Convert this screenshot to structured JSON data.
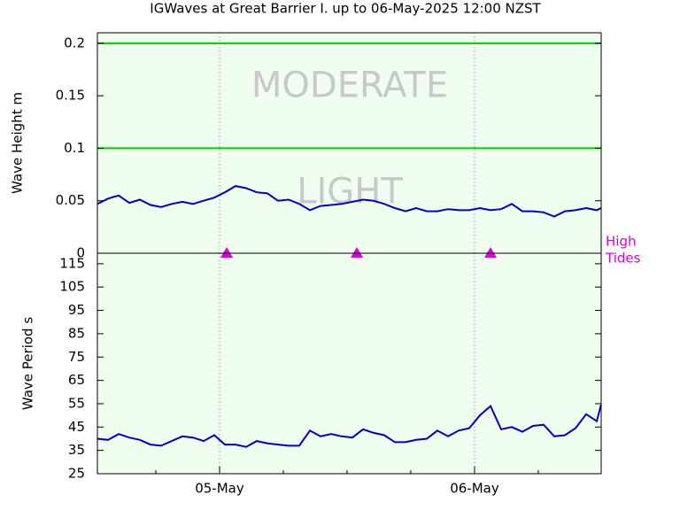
{
  "chart_data": [
    {
      "type": "line",
      "title": "IGWaves at Great Barrier I. up to 06-May-2025 12:00 NZST",
      "ylabel": "Wave Height m",
      "x": [
        -11.5,
        -10.5,
        -9.5,
        -8.5,
        -7.5,
        -6.5,
        -5.5,
        -4.5,
        -3.5,
        -2.5,
        -1.5,
        -0.5,
        0.5,
        1.5,
        2.5,
        3.5,
        4.5,
        5.5,
        6.5,
        7.5,
        8.5,
        9.5,
        10.5,
        11.5,
        12.5,
        13.5,
        14.5,
        15.5,
        16.5,
        17.5,
        18.5,
        19.5,
        20.5,
        21.5,
        22.5,
        23.5,
        24.5,
        25.5,
        26.5,
        27.5,
        28.5,
        29.5,
        30.5,
        31.5,
        32.5,
        33.5,
        34.5,
        35.5,
        35.9
      ],
      "xlim": [
        -11.5,
        35.92
      ],
      "series": [
        {
          "name": "Wave Height",
          "color": "#0000cc",
          "values": [
            0.047,
            0.052,
            0.055,
            0.048,
            0.051,
            0.046,
            0.044,
            0.047,
            0.049,
            0.047,
            0.05,
            0.053,
            0.058,
            0.064,
            0.062,
            0.058,
            0.057,
            0.05,
            0.051,
            0.047,
            0.041,
            0.045,
            0.046,
            0.047,
            0.049,
            0.051,
            0.05,
            0.047,
            0.043,
            0.04,
            0.043,
            0.04,
            0.04,
            0.042,
            0.041,
            0.041,
            0.043,
            0.041,
            0.042,
            0.047,
            0.04,
            0.04,
            0.039,
            0.035,
            0.04,
            0.041,
            0.043,
            0.041,
            0.043
          ]
        }
      ],
      "ylim": [
        0,
        0.21
      ],
      "yticks": [
        0,
        0.05,
        0.1,
        0.15,
        0.2
      ],
      "thresholds": [
        {
          "value": 0.1,
          "color": "#00cc00"
        },
        {
          "value": 0.2,
          "color": "#00cc00"
        }
      ],
      "zones": [
        "MODERATE",
        "LIGHT"
      ],
      "high_tides": {
        "label": [
          "High",
          "Tides"
        ],
        "color": "#dd00dd",
        "x": [
          0.67,
          12.92,
          25.5
        ]
      }
    },
    {
      "type": "line",
      "ylabel": "Wave Period s",
      "x": [
        -11.5,
        -10.5,
        -9.5,
        -8.5,
        -7.5,
        -6.5,
        -5.5,
        -4.5,
        -3.5,
        -2.5,
        -1.5,
        -0.5,
        0.5,
        1.5,
        2.5,
        3.5,
        4.5,
        5.5,
        6.5,
        7.5,
        8.5,
        9.5,
        10.5,
        11.5,
        12.5,
        13.5,
        14.5,
        15.5,
        16.5,
        17.5,
        18.5,
        19.5,
        20.5,
        21.5,
        22.5,
        23.5,
        24.5,
        25.5,
        26.5,
        27.5,
        28.5,
        29.5,
        30.5,
        31.5,
        32.5,
        33.5,
        34.5,
        35.5,
        35.9
      ],
      "xlim": [
        -11.5,
        35.92
      ],
      "series": [
        {
          "name": "Wave Period",
          "color": "#0000cc",
          "values": [
            40,
            39.5,
            42,
            40.5,
            39.5,
            37.5,
            37,
            39,
            41,
            40.5,
            39,
            41.5,
            37.5,
            37.5,
            36.5,
            39,
            38,
            37.5,
            37,
            37,
            43.5,
            41,
            42,
            41,
            40.5,
            44,
            42.5,
            41.5,
            38.5,
            38.5,
            39.5,
            40,
            43.5,
            41,
            43.5,
            44.5,
            50,
            54,
            44,
            45,
            43,
            45.5,
            46,
            41,
            41.5,
            44.5,
            50.5,
            47.5,
            54.5
          ]
        }
      ],
      "ylim": [
        25,
        119.5
      ],
      "yticks": [
        25,
        35,
        45,
        55,
        65,
        75,
        85,
        95,
        105,
        115
      ],
      "xticks": [
        {
          "value": 0,
          "label": "05-May"
        },
        {
          "value": 24,
          "label": "06-May"
        }
      ],
      "xminor_ticks": [
        -6,
        6,
        12,
        18,
        30
      ]
    }
  ]
}
